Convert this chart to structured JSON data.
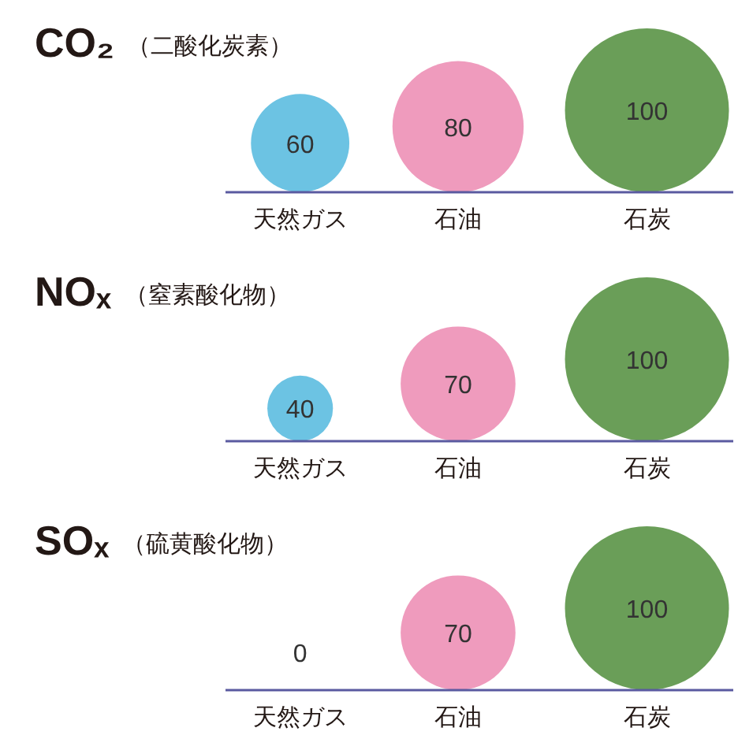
{
  "chart_data": [
    {
      "type": "other",
      "title": "CO₂",
      "subtitle": "（二酸化炭素）",
      "categories": [
        "天然ガス",
        "石油",
        "石炭"
      ],
      "values": [
        60,
        80,
        100
      ],
      "colors": [
        "#6cc3e3",
        "#ef9bbd",
        "#6a9e58"
      ],
      "data_labels": true
    },
    {
      "type": "other",
      "title": "NOₓ",
      "subtitle": "（窒素酸化物）",
      "categories": [
        "天然ガス",
        "石油",
        "石炭"
      ],
      "values": [
        40,
        70,
        100
      ],
      "colors": [
        "#6cc3e3",
        "#ef9bbd",
        "#6a9e58"
      ],
      "data_labels": true
    },
    {
      "type": "other",
      "title": "SOₓ",
      "subtitle": "（硫黄酸化物）",
      "categories": [
        "天然ガス",
        "石油",
        "石炭"
      ],
      "values": [
        0,
        70,
        100
      ],
      "colors": [
        "#6cc3e3",
        "#ef9bbd",
        "#6a9e58"
      ],
      "data_labels": true
    }
  ]
}
